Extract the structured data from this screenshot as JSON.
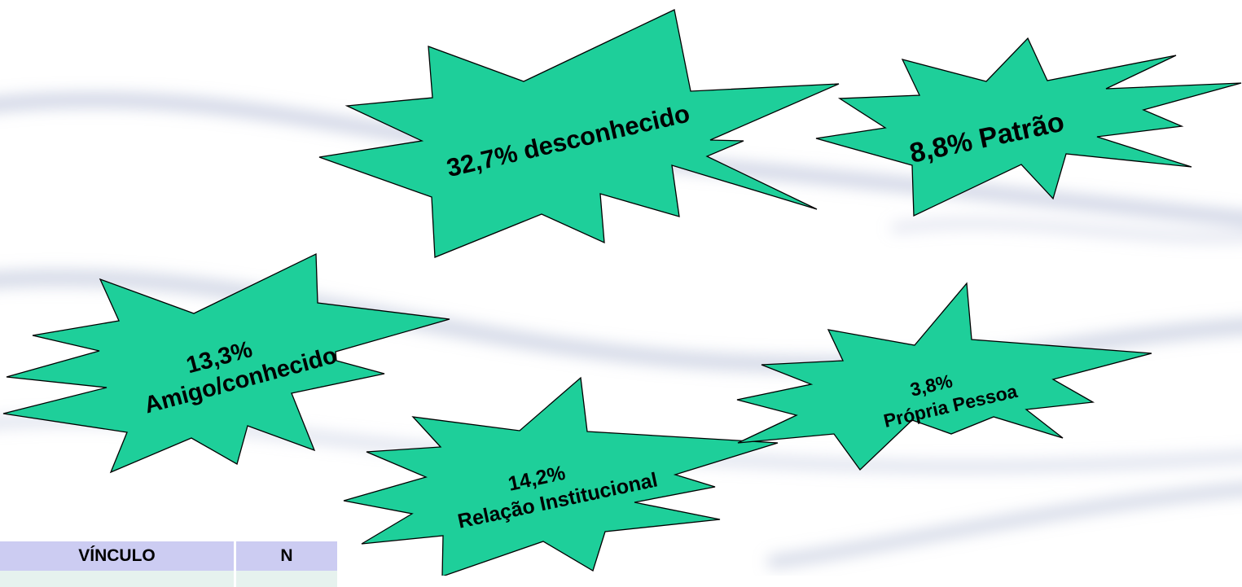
{
  "bursts": [
    {
      "id": "desconhecido",
      "lines": [
        "32,7% desconhecido"
      ],
      "percent": 32.7
    },
    {
      "id": "patrao",
      "lines": [
        "8,8% Patrão"
      ],
      "percent": 8.8
    },
    {
      "id": "amigo",
      "lines": [
        "13,3%",
        "Amigo/conhecido"
      ],
      "percent": 13.3
    },
    {
      "id": "relacao",
      "lines": [
        "14,2%",
        "Relação Institucional"
      ],
      "percent": 14.2
    },
    {
      "id": "propria",
      "lines": [
        "3,8%",
        "Própria Pessoa"
      ],
      "percent": 3.8
    }
  ],
  "table": {
    "headers": [
      "VÍNCULO",
      "N"
    ]
  },
  "colors": {
    "burst_fill": "#1ecf9a",
    "burst_stroke": "#000000",
    "swoosh": "#a9b3cf",
    "table_header": "#ccccf2",
    "table_row": "#e6f2ee"
  }
}
